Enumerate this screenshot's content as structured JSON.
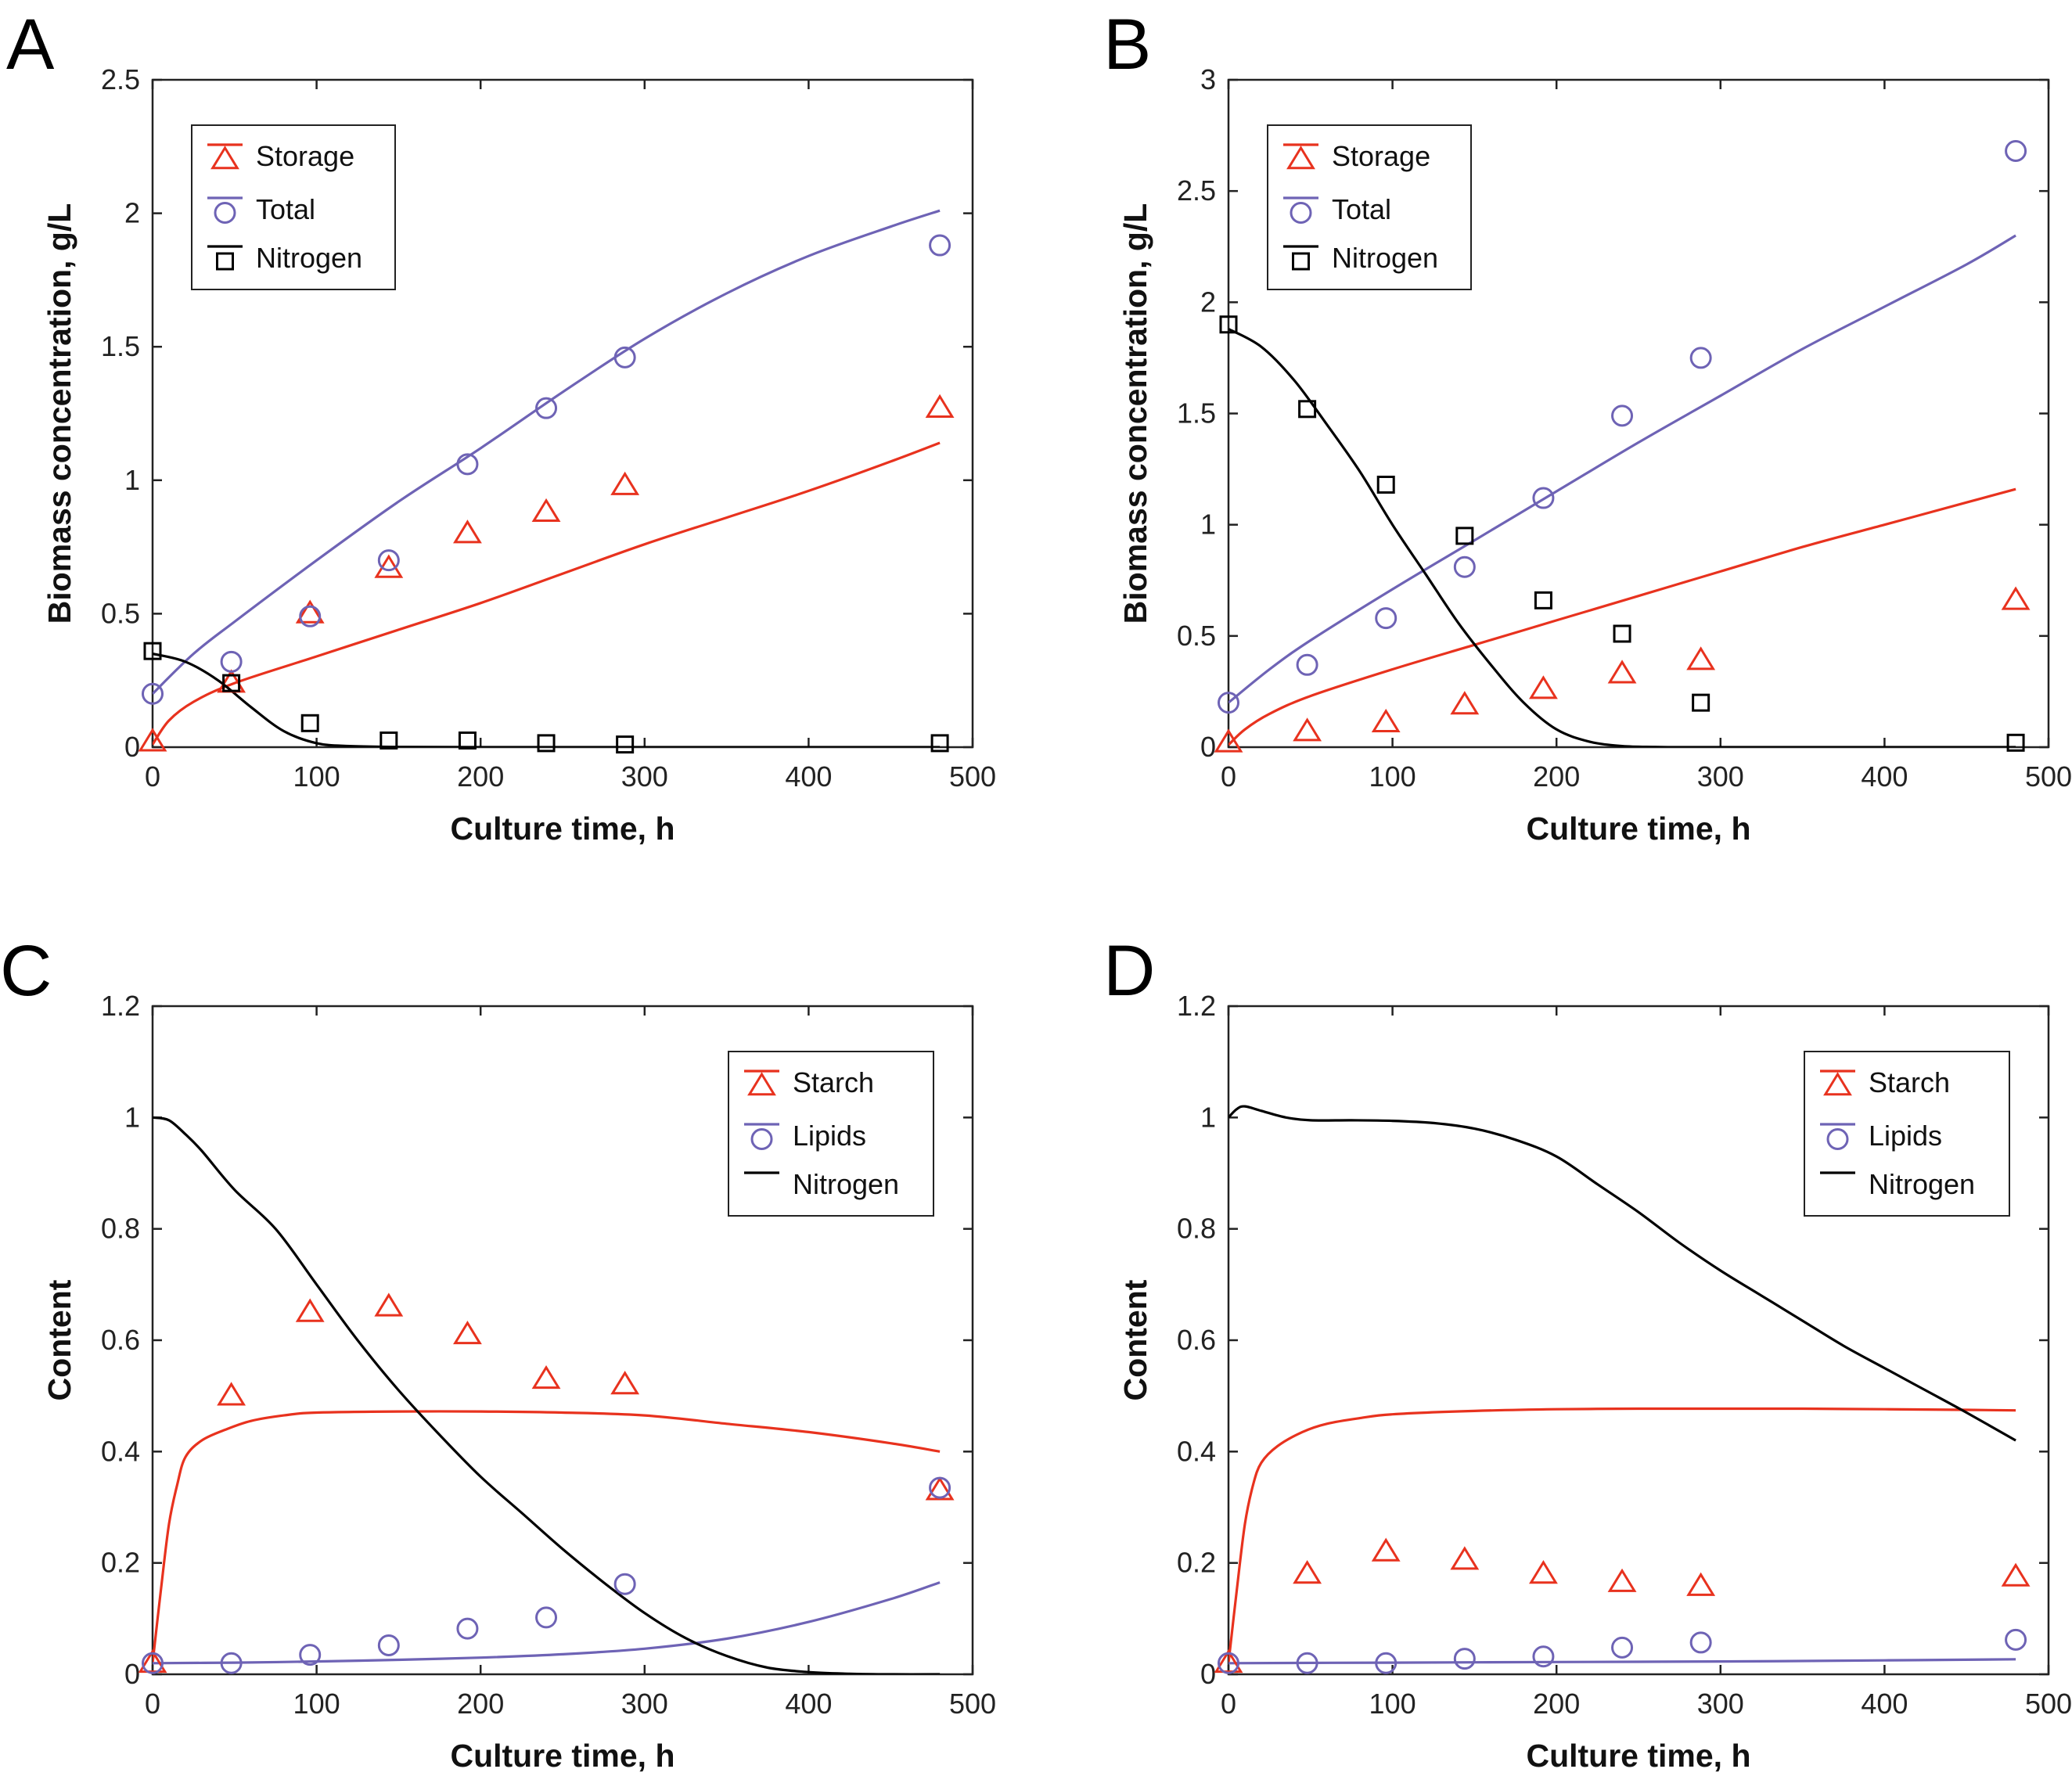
{
  "colors": {
    "storage": "#e8321e",
    "total": "#6e63b5",
    "nitrogen": "#000000"
  },
  "chart_data": [
    {
      "type": "line",
      "panel_label": "A",
      "xlabel": "Culture time, h",
      "ylabel": "Biomass concentration, g/L",
      "xlim": [
        0,
        500
      ],
      "ylim": [
        0,
        2.5
      ],
      "xticks": [
        0,
        100,
        200,
        300,
        400,
        500
      ],
      "yticks": [
        0,
        0.5,
        1,
        1.5,
        2,
        2.5
      ],
      "ytick_labels": [
        "0",
        "0.5",
        "1",
        "1.5",
        "2",
        "2.5"
      ],
      "legend_position": "top-left",
      "series": [
        {
          "name": "Storage",
          "color": "#e8321e",
          "marker": "triangle",
          "points": {
            "x": [
              0,
              48,
              96,
              144,
              192,
              240,
              288,
              480
            ],
            "y": [
              0.02,
              0.24,
              0.5,
              0.67,
              0.8,
              0.88,
              0.98,
              1.27
            ]
          },
          "curve": {
            "x": [
              0,
              10,
              25,
              50,
              100,
              150,
              200,
              250,
              300,
              350,
              400,
              450,
              480
            ],
            "y": [
              0.01,
              0.1,
              0.17,
              0.24,
              0.34,
              0.44,
              0.54,
              0.65,
              0.76,
              0.86,
              0.96,
              1.07,
              1.14
            ]
          }
        },
        {
          "name": "Total",
          "color": "#6e63b5",
          "marker": "circle",
          "points": {
            "x": [
              0,
              48,
              96,
              144,
              192,
              240,
              288,
              480
            ],
            "y": [
              0.2,
              0.32,
              0.49,
              0.7,
              1.06,
              1.27,
              1.46,
              1.88
            ]
          },
          "curve": {
            "x": [
              0,
              25,
              50,
              100,
              150,
              200,
              250,
              300,
              350,
              400,
              450,
              480
            ],
            "y": [
              0.2,
              0.35,
              0.47,
              0.7,
              0.92,
              1.12,
              1.33,
              1.53,
              1.7,
              1.84,
              1.95,
              2.01
            ]
          }
        },
        {
          "name": "Nitrogen",
          "color": "#000000",
          "marker": "square",
          "points": {
            "x": [
              0,
              48,
              96,
              144,
              192,
              240,
              288,
              480
            ],
            "y": [
              0.36,
              0.24,
              0.09,
              0.025,
              0.025,
              0.015,
              0.01,
              0.015
            ]
          },
          "curve": {
            "x": [
              0,
              20,
              40,
              60,
              80,
              100,
              120,
              150,
              200,
              300,
              480
            ],
            "y": [
              0.35,
              0.32,
              0.25,
              0.15,
              0.06,
              0.015,
              0.004,
              0.001,
              0,
              0,
              0
            ]
          }
        }
      ]
    },
    {
      "type": "line",
      "panel_label": "B",
      "xlabel": "Culture time, h",
      "ylabel": "Biomass concentration, g/L",
      "xlim": [
        0,
        500
      ],
      "ylim": [
        0,
        3
      ],
      "xticks": [
        0,
        100,
        200,
        300,
        400,
        500
      ],
      "yticks": [
        0,
        0.5,
        1,
        1.5,
        2,
        2.5,
        3
      ],
      "ytick_labels": [
        "0",
        "0.5",
        "1",
        "1.5",
        "2",
        "2.5",
        "3"
      ],
      "legend_position": "top-left",
      "series": [
        {
          "name": "Storage",
          "color": "#e8321e",
          "marker": "triangle",
          "points": {
            "x": [
              0,
              48,
              96,
              144,
              192,
              240,
              288,
              480
            ],
            "y": [
              0.02,
              0.07,
              0.11,
              0.19,
              0.26,
              0.33,
              0.39,
              0.66
            ]
          },
          "curve": {
            "x": [
              0,
              10,
              25,
              50,
              100,
              150,
              200,
              250,
              300,
              350,
              400,
              450,
              480
            ],
            "y": [
              0.01,
              0.08,
              0.15,
              0.23,
              0.35,
              0.46,
              0.57,
              0.68,
              0.79,
              0.9,
              1.0,
              1.1,
              1.16
            ]
          }
        },
        {
          "name": "Total",
          "color": "#6e63b5",
          "marker": "circle",
          "points": {
            "x": [
              0,
              48,
              96,
              144,
              192,
              240,
              288,
              480
            ],
            "y": [
              0.2,
              0.37,
              0.58,
              0.81,
              1.12,
              1.49,
              1.75,
              2.68
            ]
          },
          "curve": {
            "x": [
              0,
              25,
              50,
              100,
              150,
              200,
              250,
              300,
              350,
              400,
              450,
              480
            ],
            "y": [
              0.2,
              0.35,
              0.48,
              0.71,
              0.93,
              1.15,
              1.37,
              1.58,
              1.79,
              1.98,
              2.17,
              2.3
            ]
          }
        },
        {
          "name": "Nitrogen",
          "color": "#000000",
          "marker": "square",
          "points": {
            "x": [
              0,
              48,
              96,
              144,
              192,
              240,
              288,
              480
            ],
            "y": [
              1.9,
              1.52,
              1.18,
              0.95,
              0.66,
              0.51,
              0.2,
              0.02
            ]
          },
          "curve": {
            "x": [
              0,
              20,
              40,
              60,
              80,
              100,
              120,
              140,
              160,
              180,
              200,
              220,
              240,
              260,
              300,
              480
            ],
            "y": [
              1.88,
              1.8,
              1.65,
              1.45,
              1.24,
              1.0,
              0.78,
              0.56,
              0.37,
              0.2,
              0.08,
              0.025,
              0.005,
              0.001,
              0,
              0
            ]
          }
        }
      ]
    },
    {
      "type": "line",
      "panel_label": "C",
      "xlabel": "Culture time, h",
      "ylabel": "Content",
      "xlim": [
        0,
        500
      ],
      "ylim": [
        0,
        1.2
      ],
      "xticks": [
        0,
        100,
        200,
        300,
        400,
        500
      ],
      "yticks": [
        0,
        0.2,
        0.4,
        0.6,
        0.8,
        1,
        1.2
      ],
      "ytick_labels": [
        "0",
        "0.2",
        "0.4",
        "0.6",
        "0.8",
        "1",
        "1.2"
      ],
      "legend_position": "top-right",
      "series": [
        {
          "name": "Starch",
          "color": "#e8321e",
          "marker": "triangle",
          "points": {
            "x": [
              0,
              48,
              96,
              144,
              192,
              240,
              288,
              480
            ],
            "y": [
              0.02,
              0.5,
              0.65,
              0.66,
              0.61,
              0.53,
              0.52,
              0.33
            ]
          },
          "curve": {
            "x": [
              0,
              5,
              10,
              15,
              20,
              30,
              45,
              60,
              80,
              100,
              150,
              200,
              250,
              300,
              350,
              400,
              450,
              480
            ],
            "y": [
              0.02,
              0.15,
              0.27,
              0.34,
              0.39,
              0.42,
              0.44,
              0.455,
              0.465,
              0.47,
              0.472,
              0.472,
              0.47,
              0.465,
              0.45,
              0.435,
              0.415,
              0.4
            ]
          }
        },
        {
          "name": "Lipids",
          "color": "#6e63b5",
          "marker": "circle",
          "points": {
            "x": [
              0,
              48,
              96,
              144,
              192,
              240,
              288,
              480
            ],
            "y": [
              0.02,
              0.02,
              0.035,
              0.052,
              0.082,
              0.102,
              0.162,
              0.335
            ]
          },
          "curve": {
            "x": [
              0,
              50,
              100,
              150,
              200,
              250,
              300,
              350,
              400,
              450,
              480
            ],
            "y": [
              0.02,
              0.021,
              0.023,
              0.026,
              0.03,
              0.036,
              0.046,
              0.064,
              0.094,
              0.135,
              0.165
            ]
          }
        },
        {
          "name": "Nitrogen",
          "color": "#000000",
          "marker": "none",
          "curve": {
            "x": [
              0,
              10,
              20,
              30,
              50,
              75,
              100,
              125,
              150,
              175,
              200,
              225,
              250,
              275,
              300,
              325,
              350,
              375,
              400,
              425,
              450,
              480
            ],
            "y": [
              1.0,
              0.995,
              0.97,
              0.94,
              0.87,
              0.8,
              0.7,
              0.6,
              0.51,
              0.43,
              0.355,
              0.29,
              0.225,
              0.165,
              0.11,
              0.065,
              0.033,
              0.012,
              0.004,
              0.001,
              0,
              0
            ]
          }
        }
      ]
    },
    {
      "type": "line",
      "panel_label": "D",
      "xlabel": "Culture time, h",
      "ylabel": "Content",
      "xlim": [
        0,
        500
      ],
      "ylim": [
        0,
        1.2
      ],
      "xticks": [
        0,
        100,
        200,
        300,
        400,
        500
      ],
      "yticks": [
        0,
        0.2,
        0.4,
        0.6,
        0.8,
        1,
        1.2
      ],
      "ytick_labels": [
        "0",
        "0.2",
        "0.4",
        "0.6",
        "0.8",
        "1",
        "1.2"
      ],
      "legend_position": "top-right",
      "series": [
        {
          "name": "Starch",
          "color": "#e8321e",
          "marker": "triangle",
          "points": {
            "x": [
              0,
              48,
              96,
              144,
              192,
              240,
              288,
              480
            ],
            "y": [
              0.02,
              0.18,
              0.22,
              0.205,
              0.18,
              0.165,
              0.158,
              0.175
            ]
          },
          "curve": {
            "x": [
              0,
              5,
              10,
              15,
              20,
              30,
              45,
              60,
              80,
              100,
              150,
              200,
              250,
              300,
              350,
              400,
              450,
              480
            ],
            "y": [
              0.02,
              0.15,
              0.27,
              0.34,
              0.38,
              0.41,
              0.435,
              0.45,
              0.46,
              0.467,
              0.473,
              0.476,
              0.477,
              0.477,
              0.477,
              0.476,
              0.475,
              0.474
            ]
          }
        },
        {
          "name": "Lipids",
          "color": "#6e63b5",
          "marker": "circle",
          "points": {
            "x": [
              0,
              48,
              96,
              144,
              192,
              240,
              288,
              480
            ],
            "y": [
              0.02,
              0.02,
              0.02,
              0.028,
              0.032,
              0.048,
              0.057,
              0.062
            ]
          },
          "curve": {
            "x": [
              0,
              100,
              200,
              300,
              400,
              480
            ],
            "y": [
              0.02,
              0.021,
              0.022,
              0.023,
              0.025,
              0.027
            ]
          }
        },
        {
          "name": "Nitrogen",
          "color": "#000000",
          "marker": "none",
          "curve": {
            "x": [
              0,
              5,
              10,
              20,
              35,
              50,
              75,
              100,
              125,
              150,
              175,
              200,
              225,
              250,
              275,
              300,
              325,
              350,
              375,
              400,
              425,
              450,
              480
            ],
            "y": [
              1.0,
              1.015,
              1.02,
              1.012,
              1.0,
              0.995,
              0.995,
              0.994,
              0.99,
              0.98,
              0.96,
              0.93,
              0.88,
              0.83,
              0.775,
              0.725,
              0.68,
              0.635,
              0.59,
              0.55,
              0.51,
              0.47,
              0.42
            ]
          }
        }
      ]
    }
  ]
}
